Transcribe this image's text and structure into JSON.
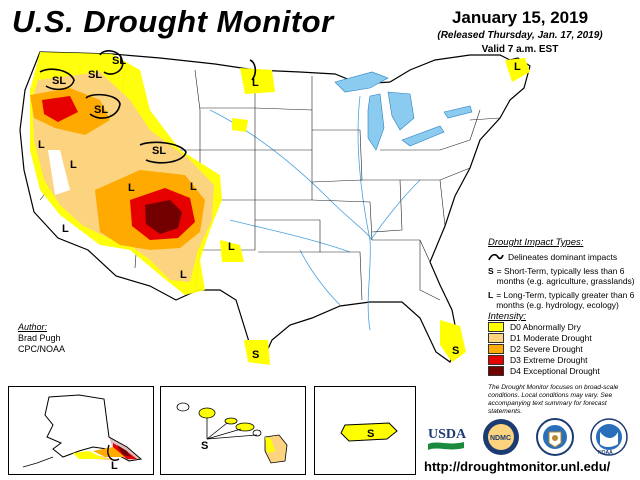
{
  "header": {
    "title": "U.S. Drought Monitor",
    "date": "January 15, 2019",
    "released": "(Released Thursday, Jan. 17, 2019)",
    "valid": "Valid 7 a.m. EST"
  },
  "impact_types": {
    "title": "Drought Impact Types:",
    "delineates": "Delineates dominant impacts",
    "short_term_key": "S",
    "short_term_text": "= Short-Term, typically less than 6 months (e.g. agriculture, grasslands)",
    "long_term_key": "L",
    "long_term_text": "= Long-Term, typically greater than 6 months (e.g. hydrology, ecology)"
  },
  "intensity": {
    "title": "Intensity:",
    "levels": [
      {
        "label": "D0 Abnormally Dry",
        "color": "#ffff00"
      },
      {
        "label": "D1 Moderate Drought",
        "color": "#fcd37f"
      },
      {
        "label": "D2 Severe Drought",
        "color": "#ffaa00"
      },
      {
        "label": "D3 Extreme Drought",
        "color": "#e60000"
      },
      {
        "label": "D4 Exceptional Drought",
        "color": "#730000"
      }
    ]
  },
  "disclaimer": "The Drought Monitor focuses on broad-scale conditions. Local conditions may vary. See accompanying text summary for forecast statements.",
  "author": {
    "label": "Author:",
    "name": "Brad Pugh",
    "org": "CPC/NOAA"
  },
  "map_labels": {
    "pnw_sl_1": "SL",
    "pnw_sl_2": "SL",
    "or_sl": "SL",
    "id_sl": "SL",
    "wy_sl": "SL",
    "mt_l": "L",
    "ne_l": "L",
    "ca_l_north": "L",
    "nv_l": "L",
    "ca_l_south": "L",
    "ut_l": "L",
    "co_l": "L",
    "nm_l": "L",
    "tx_l": "L",
    "tx_s": "S",
    "fl_s": "S",
    "ak_l": "L",
    "hi_s": "S",
    "pr_s": "S"
  },
  "logos": {
    "usda": "USDA",
    "ndmc": "NDMC",
    "noaa": "NOAA"
  },
  "url": "http://droughtmonitor.unl.edu/"
}
